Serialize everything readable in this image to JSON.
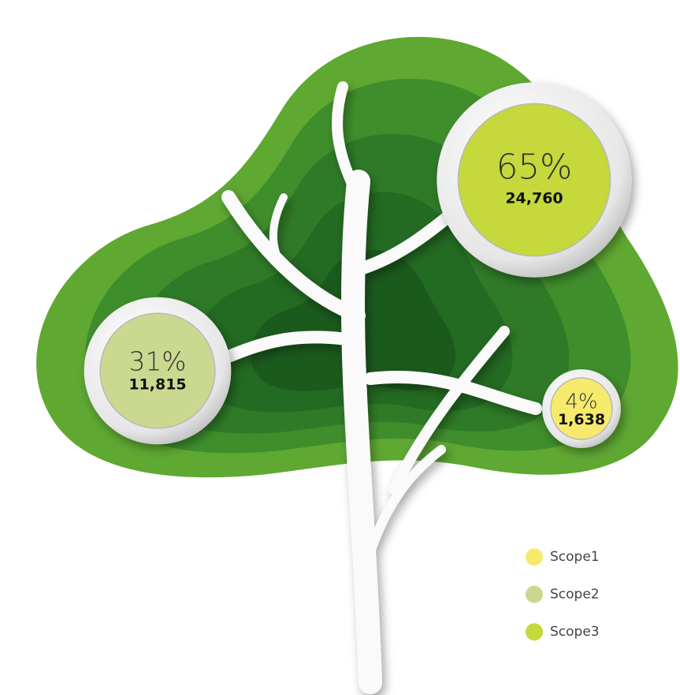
{
  "chart_data": {
    "type": "bubble",
    "categories": [
      "Scope1",
      "Scope2",
      "Scope3"
    ],
    "colors": [
      "#f6ea6c",
      "#cad98f",
      "#c5d83c"
    ],
    "values": [
      4,
      31,
      65
    ],
    "value_labels": [
      "4%",
      "31%",
      "65%"
    ],
    "amounts": [
      1638,
      11815,
      24760
    ],
    "amount_labels": [
      "1,638",
      "11,815",
      "24,760"
    ]
  }
}
